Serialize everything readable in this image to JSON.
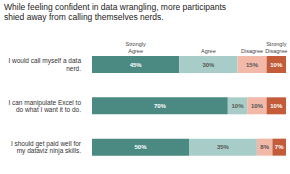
{
  "chart_data": {
    "type": "bar",
    "orientation": "horizontal",
    "stacked": true,
    "title": "While feeling confident in data wrangling, more participants\nshied away from calling themselves nerds.",
    "categories": [
      "I would call myself a data\nnerd.",
      "I can manipulate Excel to\ndo what I want it to do.",
      "I should get paid well for\nmy dataviz ninja skills."
    ],
    "series": [
      {
        "name": "Strongly\nAgree",
        "color": "#4a8a82",
        "values": [
          45,
          70,
          50
        ],
        "value_labels": [
          "45%",
          "70%",
          "50%"
        ]
      },
      {
        "name": "Agree",
        "color": "#a8cdc8",
        "values": [
          30,
          10,
          35
        ],
        "value_labels": [
          "30%",
          "10%",
          "35%"
        ]
      },
      {
        "name": "Disagree",
        "color": "#f2b8a8",
        "values": [
          15,
          10,
          8
        ],
        "value_labels": [
          "15%",
          "10%",
          "8%"
        ]
      },
      {
        "name": "Strongly\nDisagree",
        "color": "#c45c3a",
        "values": [
          10,
          10,
          7
        ],
        "value_labels": [
          "10%",
          "10%",
          "7%"
        ]
      }
    ],
    "xlim": [
      0,
      100
    ],
    "data_labels": true,
    "tick_labels": "y",
    "grid": false
  }
}
